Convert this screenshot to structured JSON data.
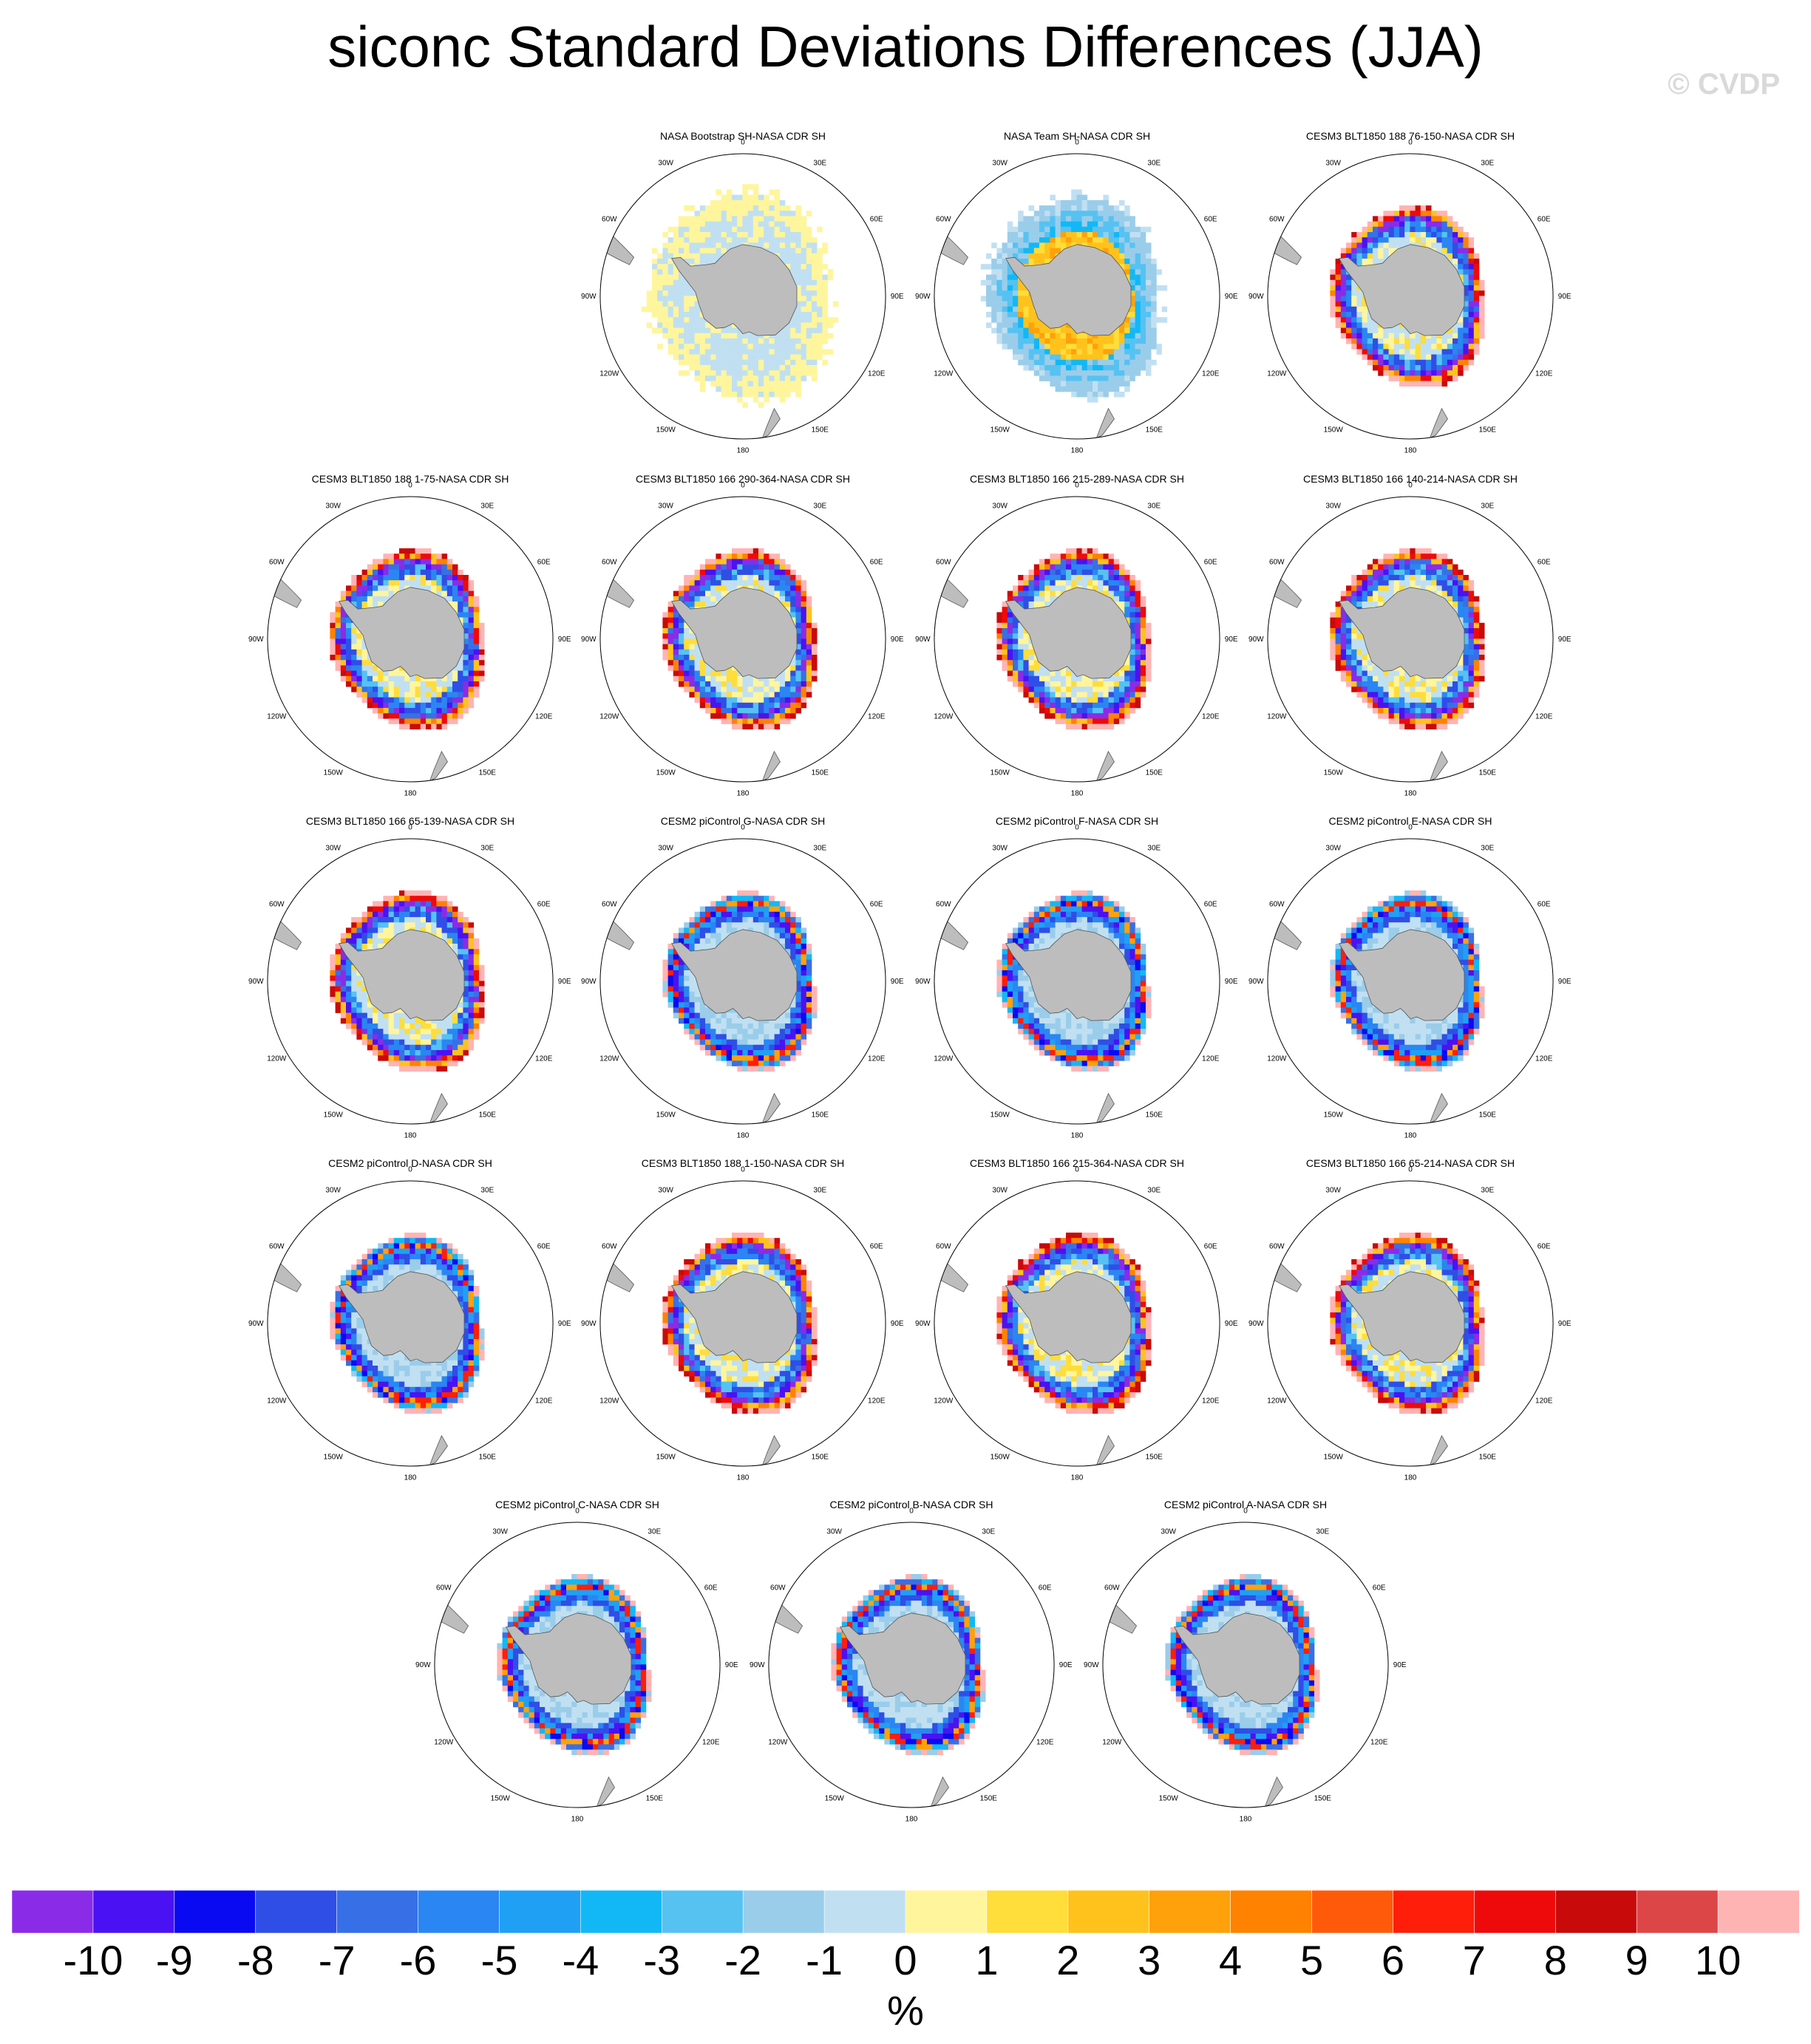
{
  "title": "siconc Standard Deviations Differences (JJA)",
  "watermark": "© CVDP",
  "map": {
    "projection": "south polar stereographic",
    "lon_labels": [
      "0",
      "30E",
      "60E",
      "90E",
      "120E",
      "150E",
      "180",
      "150W",
      "120W",
      "90W",
      "60W",
      "30W"
    ]
  },
  "panels": [
    {
      "title": "NASA Bootstrap SH-NASA CDR SH",
      "row": 0,
      "col": 1,
      "pattern": "bootstrap"
    },
    {
      "title": "NASA Team SH-NASA CDR SH",
      "row": 0,
      "col": 2,
      "pattern": "team"
    },
    {
      "title": "CESM3 BLT1850 188 76-150-NASA CDR SH",
      "row": 0,
      "col": 3,
      "pattern": "cesm3"
    },
    {
      "title": "CESM3 BLT1850 188 1-75-NASA CDR SH",
      "row": 1,
      "col": 0,
      "pattern": "cesm3"
    },
    {
      "title": "CESM3 BLT1850 166 290-364-NASA CDR SH",
      "row": 1,
      "col": 1,
      "pattern": "cesm3"
    },
    {
      "title": "CESM3 BLT1850 166 215-289-NASA CDR SH",
      "row": 1,
      "col": 2,
      "pattern": "cesm3"
    },
    {
      "title": "CESM3 BLT1850 166 140-214-NASA CDR SH",
      "row": 1,
      "col": 3,
      "pattern": "cesm3"
    },
    {
      "title": "CESM3 BLT1850 166 65-139-NASA CDR SH",
      "row": 2,
      "col": 0,
      "pattern": "cesm3"
    },
    {
      "title": "CESM2 piControl G-NASA CDR SH",
      "row": 2,
      "col": 1,
      "pattern": "cesm2"
    },
    {
      "title": "CESM2 piControl F-NASA CDR SH",
      "row": 2,
      "col": 2,
      "pattern": "cesm2"
    },
    {
      "title": "CESM2 piControl E-NASA CDR SH",
      "row": 2,
      "col": 3,
      "pattern": "cesm2"
    },
    {
      "title": "CESM2 piControl D-NASA CDR SH",
      "row": 3,
      "col": 0,
      "pattern": "cesm2"
    },
    {
      "title": "CESM3 BLT1850 188 1-150-NASA CDR SH",
      "row": 3,
      "col": 1,
      "pattern": "cesm3"
    },
    {
      "title": "CESM3 BLT1850 166 215-364-NASA CDR SH",
      "row": 3,
      "col": 2,
      "pattern": "cesm3"
    },
    {
      "title": "CESM3 BLT1850 166 65-214-NASA CDR SH",
      "row": 3,
      "col": 3,
      "pattern": "cesm3"
    },
    {
      "title": "CESM2 piControl C-NASA CDR SH",
      "row": 4,
      "col": 0,
      "pattern": "cesm2"
    },
    {
      "title": "CESM2 piControl B-NASA CDR SH",
      "row": 4,
      "col": 1,
      "pattern": "cesm2"
    },
    {
      "title": "CESM2 piControl A-NASA CDR SH",
      "row": 4,
      "col": 2,
      "pattern": "cesm2"
    }
  ],
  "colorbar": {
    "colors": [
      "#8a2be8",
      "#4a12f2",
      "#0a0af2",
      "#2f4ee6",
      "#3770e6",
      "#2a86f2",
      "#1fa0f5",
      "#12b8f5",
      "#56c2f2",
      "#9acdea",
      "#c0e0f2",
      "#fff59c",
      "#ffdd3a",
      "#ffc21c",
      "#ffa10a",
      "#ff8200",
      "#ff5a0a",
      "#ff1e0a",
      "#ee0a0a",
      "#c80a0a",
      "#dc4646",
      "#ffb4b4"
    ],
    "labels": [
      "-10",
      "-9",
      "-8",
      "-7",
      "-6",
      "-5",
      "-4",
      "-3",
      "-2",
      "-1",
      "0",
      "1",
      "2",
      "3",
      "4",
      "5",
      "6",
      "7",
      "8",
      "9",
      "10"
    ],
    "units": "%"
  }
}
